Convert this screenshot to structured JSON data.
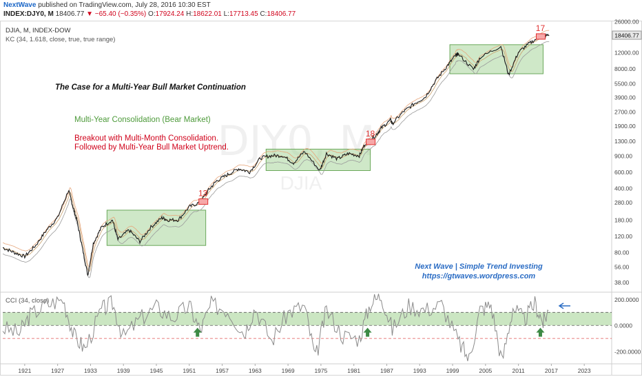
{
  "header": {
    "author": "NextWave",
    "published": "published on TradingView.com, July 28, 2016 10:30 EST",
    "symbol": "INDEX:DJY0, M",
    "last": "18406.77",
    "change": "▼ −65.40 (−0.35%)",
    "open": "17924.24",
    "high": "18622.01",
    "low": "17713.45",
    "close": "18406.77"
  },
  "main_pane": {
    "symbol_line": "DJIA, M, INDEX-DOW",
    "indicator_line": "KC (34, 1.618, close, true, true range)",
    "watermark_big": "DJY0, M",
    "watermark_small": "DJIA",
    "price_badge": "18406.77"
  },
  "chart_data": [
    {
      "type": "line",
      "series": [
        {
          "name": "DJIA",
          "x": [
            1917,
            1919,
            1921,
            1923,
            1925,
            1927,
            1929,
            1929.8,
            1930.5,
            1931.5,
            1932.5,
            1933.5,
            1935,
            1937,
            1938,
            1940,
            1942,
            1944,
            1946,
            1947,
            1949,
            1951,
            1953,
            1954.5,
            1956,
            1958,
            1960,
            1962,
            1964,
            1966,
            1968,
            1970,
            1972,
            1974.8,
            1976,
            1978,
            1980,
            1982,
            1983,
            1985,
            1986,
            1987.7,
            1988,
            1990,
            1992,
            1994,
            1996,
            1998,
            1999.5,
            2000,
            2002.8,
            2004,
            2007.8,
            2009.2,
            2011,
            2013,
            2015,
            2016.6
          ],
          "y": [
            90,
            80,
            72,
            95,
            140,
            190,
            380,
            250,
            180,
            90,
            45,
            100,
            150,
            180,
            110,
            140,
            105,
            150,
            190,
            180,
            180,
            250,
            280,
            380,
            480,
            560,
            650,
            600,
            850,
            900,
            900,
            750,
            1000,
            620,
            950,
            830,
            950,
            900,
            1200,
            1500,
            1800,
            2200,
            2000,
            2700,
            3300,
            3900,
            6000,
            8500,
            11000,
            11500,
            7800,
            10500,
            14000,
            6800,
            12000,
            15000,
            17800,
            18406.77
          ]
        }
      ],
      "channels": [
        {
          "x_start": 1936,
          "x_end": 1954,
          "y_low": 95,
          "y_high": 230
        },
        {
          "x_start": 1965,
          "x_end": 1984,
          "y_low": 620,
          "y_high": 1060
        },
        {
          "x_start": 1998.5,
          "x_end": 2015.5,
          "y_low": 7000,
          "y_high": 14500
        }
      ],
      "markers": [
        {
          "label": "13",
          "x": 1953.5,
          "y": 280
        },
        {
          "label": "18",
          "x": 1984,
          "y": 1250
        },
        {
          "label": "17",
          "x": 2015,
          "y": 17500
        }
      ],
      "title": "The Case for a Multi-Year Bull Market Continuation",
      "annotations": [
        "Multi-Year Consolidation (Bear Market)",
        "Breakout with Multi-Month Consolidation.",
        "Followed by Multi-Year Bull Market Uptrend.",
        "Next Wave | Simple Trend Investing",
        "https://gtwaves.wordpress.com"
      ],
      "yscale": "log",
      "ylim": [
        30,
        26000
      ],
      "yticks": [
        "26000.00",
        "12000.00",
        "8000.00",
        "5500.00",
        "3900.00",
        "2700.00",
        "1900.00",
        "1300.00",
        "900.00",
        "600.00",
        "400.00",
        "280.00",
        "180.00",
        "120.00",
        "80.00",
        "56.00",
        "38.00"
      ],
      "xlim": [
        1917,
        2028
      ],
      "xticks": [
        "1921",
        "1927",
        "1933",
        "1939",
        "1945",
        "1951",
        "1957",
        "1963",
        "1969",
        "1975",
        "1981",
        "1987",
        "1993",
        "1999",
        "2005",
        "2011",
        "2017",
        "2023"
      ]
    },
    {
      "type": "line",
      "indicator_label": "CCI (34, close)",
      "series": [
        {
          "name": "CCI",
          "x": [
            1917,
            1920,
            1922,
            1925,
            1928,
            1930,
            1932,
            1935,
            1937,
            1939,
            1942,
            1945,
            1948,
            1951,
            1953,
            1955,
            1958,
            1961,
            1963,
            1966,
            1969,
            1972,
            1974,
            1976,
            1979,
            1982,
            1984,
            1986,
            1988,
            1991,
            1994,
            1997,
            2000,
            2002,
            2004,
            2006,
            2008,
            2010,
            2012,
            2014,
            2015.5,
            2016.6
          ],
          "y": [
            -20,
            -60,
            80,
            160,
            200,
            -80,
            -180,
            120,
            170,
            -90,
            50,
            140,
            60,
            150,
            -40,
            160,
            120,
            -60,
            140,
            -120,
            100,
            150,
            -260,
            120,
            -80,
            -100,
            170,
            230,
            -30,
            150,
            120,
            160,
            -120,
            -260,
            120,
            160,
            -280,
            140,
            40,
            170,
            20,
            130
          ]
        }
      ],
      "levels": [
        100,
        0,
        -100
      ],
      "zone": [
        0,
        100
      ],
      "arrows_x": [
        1952.5,
        1983.5,
        2015
      ],
      "ylim": [
        -290,
        250
      ],
      "yticks": [
        "200.0000",
        "0.0000",
        "-200.0000"
      ]
    }
  ],
  "colors": {
    "price": "#1a1a1a",
    "kc_upper": "#e6a57a",
    "kc_lower": "#9a9a9a",
    "kc_mid": "#c9a06a",
    "zone_fill": "#a8d59a",
    "zone_stroke": "#6aa85a",
    "marker": "#e03030",
    "cci": "#8a8a8a",
    "arrow": "#3d8a45",
    "level_red": "#e05050",
    "blue": "#2a6cc4"
  }
}
